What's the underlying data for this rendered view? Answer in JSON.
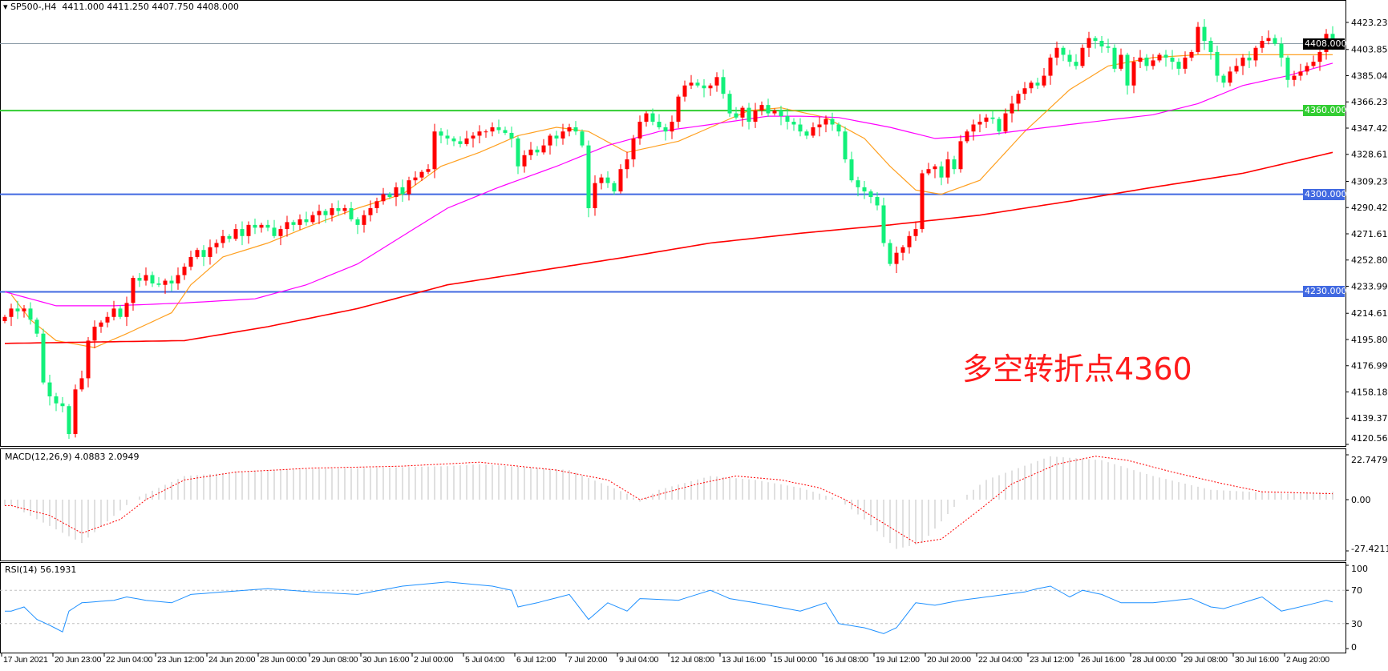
{
  "header": {
    "symbol": "SP500-,H4",
    "ohlc": "4411.000 4411.250 4407.750 4408.000",
    "macd_title": "MACD(12,26,9) 4.0883 2.0949",
    "rsi_title": "RSI(14) 56.1931"
  },
  "annotation": "多空转折点4360",
  "colors": {
    "up": "#ff0000",
    "down": "#12f07a",
    "ma_fast": "#ffa020",
    "ma_mid": "#ff00ff",
    "ma_slow": "#ff0000",
    "support": "#4169e1",
    "pivot": "#32cd32",
    "current": "#000000",
    "rsi": "#1e90ff",
    "macd_hist": "#c0c0c0",
    "macd_signal": "#ff0000"
  },
  "chart_data": [
    {
      "type": "candlestick",
      "title": "SP500-,H4",
      "price_axis_ticks": [
        "4423.230",
        "4403.850",
        "4385.040",
        "4366.230",
        "4347.420",
        "4328.610",
        "4309.230",
        "4290.420",
        "4271.610",
        "4252.800",
        "4233.990",
        "4214.610",
        "4195.800",
        "4176.990",
        "4158.180",
        "4139.370",
        "4120.560"
      ],
      "ylim": [
        4120.56,
        4423.23
      ],
      "time_axis_ticks": [
        "17 Jun 2021",
        "20 Jun 23:00",
        "22 Jun 04:00",
        "23 Jun 12:00",
        "24 Jun 20:00",
        "28 Jun 00:00",
        "29 Jun 08:00",
        "30 Jun 16:00",
        "2 Jul 00:00",
        "5 Jul 04:00",
        "6 Jul 12:00",
        "7 Jul 20:00",
        "9 Jul 04:00",
        "12 Jul 08:00",
        "13 Jul 16:00",
        "15 Jul 00:00",
        "16 Jul 08:00",
        "19 Jul 12:00",
        "20 Jul 20:00",
        "22 Jul 04:00",
        "23 Jul 12:00",
        "26 Jul 16:00",
        "28 Jul 00:00",
        "29 Jul 08:00",
        "30 Jul 16:00",
        "2 Aug 20:00"
      ],
      "bars_per_time_tick": 8,
      "closes": [
        4212,
        4218,
        4216,
        4218,
        4210,
        4200,
        4165,
        4155,
        4150,
        4148,
        4128,
        4160,
        4168,
        4195,
        4205,
        4208,
        4212,
        4218,
        4212,
        4222,
        4240,
        4238,
        4242,
        4236,
        4235,
        4238,
        4236,
        4242,
        4248,
        4255,
        4260,
        4255,
        4262,
        4265,
        4270,
        4268,
        4275,
        4270,
        4278,
        4276,
        4278,
        4276,
        4270,
        4275,
        4280,
        4278,
        4282,
        4280,
        4285,
        4288,
        4285,
        4290,
        4288,
        4290,
        4282,
        4278,
        4285,
        4290,
        4295,
        4300,
        4298,
        4305,
        4300,
        4310,
        4312,
        4316,
        4318,
        4345,
        4342,
        4340,
        4338,
        4336,
        4340,
        4342,
        4345,
        4345,
        4348,
        4346,
        4344,
        4340,
        4320,
        4328,
        4332,
        4330,
        4335,
        4342,
        4340,
        4345,
        4348,
        4345,
        4335,
        4290,
        4308,
        4312,
        4308,
        4302,
        4318,
        4325,
        4340,
        4352,
        4358,
        4352,
        4348,
        4345,
        4352,
        4370,
        4378,
        4380,
        4378,
        4376,
        4378,
        4384,
        4372,
        4358,
        4355,
        4362,
        4352,
        4360,
        4364,
        4358,
        4360,
        4356,
        4352,
        4350,
        4345,
        4342,
        4348,
        4350,
        4354,
        4350,
        4345,
        4325,
        4310,
        4305,
        4302,
        4298,
        4292,
        4265,
        4250,
        4258,
        4262,
        4270,
        4275,
        4315,
        4318,
        4320,
        4312,
        4325,
        4318,
        4338,
        4345,
        4350,
        4352,
        4355,
        4354,
        4345,
        4358,
        4365,
        4372,
        4376,
        4380,
        4378,
        4385,
        4398,
        4405,
        4400,
        4395,
        4392,
        4405,
        4412,
        4410,
        4406,
        4405,
        4390,
        4400,
        4378,
        4395,
        4398,
        4392,
        4396,
        4400,
        4398,
        4395,
        4390,
        4398,
        4402,
        4420,
        4410,
        4402,
        4385,
        4380,
        4388,
        4392,
        4398,
        4396,
        4405,
        4410,
        4412,
        4408,
        4398,
        4382,
        4385,
        4388,
        4392,
        4395,
        4402,
        4415,
        4408
      ],
      "moving_averages": {
        "fast": [
          [
            1,
            4228
          ],
          [
            4,
            4210
          ],
          [
            8,
            4195
          ],
          [
            14,
            4190
          ],
          [
            19,
            4200
          ],
          [
            26,
            4215
          ],
          [
            29,
            4235
          ],
          [
            34,
            4255
          ],
          [
            41,
            4265
          ],
          [
            48,
            4278
          ],
          [
            55,
            4290
          ],
          [
            62,
            4300
          ],
          [
            68,
            4320
          ],
          [
            74,
            4330
          ],
          [
            80,
            4342
          ],
          [
            86,
            4348
          ],
          [
            91,
            4345
          ],
          [
            97,
            4330
          ],
          [
            105,
            4338
          ],
          [
            110,
            4348
          ],
          [
            116,
            4360
          ],
          [
            121,
            4362
          ],
          [
            128,
            4355
          ],
          [
            134,
            4340
          ],
          [
            138,
            4320
          ],
          [
            142,
            4303
          ],
          [
            146,
            4300
          ],
          [
            152,
            4310
          ],
          [
            159,
            4345
          ],
          [
            166,
            4375
          ],
          [
            172,
            4392
          ],
          [
            179,
            4398
          ],
          [
            186,
            4400
          ],
          [
            193,
            4400
          ],
          [
            200,
            4400
          ],
          [
            207,
            4400
          ]
        ],
        "mid": [
          [
            0,
            4230
          ],
          [
            8,
            4220
          ],
          [
            17,
            4220
          ],
          [
            28,
            4222
          ],
          [
            39,
            4225
          ],
          [
            47,
            4235
          ],
          [
            55,
            4250
          ],
          [
            62,
            4270
          ],
          [
            69,
            4290
          ],
          [
            77,
            4305
          ],
          [
            86,
            4320
          ],
          [
            94,
            4335
          ],
          [
            102,
            4345
          ],
          [
            110,
            4350
          ],
          [
            119,
            4356
          ],
          [
            124,
            4356
          ],
          [
            130,
            4355
          ],
          [
            138,
            4348
          ],
          [
            145,
            4340
          ],
          [
            152,
            4342
          ],
          [
            166,
            4350
          ],
          [
            179,
            4357
          ],
          [
            186,
            4365
          ],
          [
            193,
            4378
          ],
          [
            200,
            4385
          ],
          [
            207,
            4394
          ]
        ],
        "slow": [
          [
            0,
            4193
          ],
          [
            28,
            4195
          ],
          [
            41,
            4205
          ],
          [
            55,
            4218
          ],
          [
            69,
            4235
          ],
          [
            83,
            4245
          ],
          [
            97,
            4255
          ],
          [
            110,
            4265
          ],
          [
            124,
            4272
          ],
          [
            138,
            4278
          ],
          [
            152,
            4285
          ],
          [
            166,
            4295
          ],
          [
            179,
            4305
          ],
          [
            193,
            4315
          ],
          [
            207,
            4330
          ]
        ]
      },
      "horizontal_levels": [
        {
          "value": "4408.000",
          "role": "current"
        },
        {
          "value": "4360.000",
          "role": "pivot"
        },
        {
          "value": "4300.000",
          "role": "support"
        },
        {
          "value": "4230.000",
          "role": "support"
        }
      ]
    },
    {
      "type": "bar+line",
      "title": "MACD(12,26,9) 4.0883 2.0949",
      "axis_ticks": [
        "22.7479",
        "0.00",
        "-27.4211"
      ],
      "ylim": [
        -27.4211,
        22.7479
      ],
      "histogram": [
        [
          1,
          -3
        ],
        [
          12,
          -22
        ],
        [
          20,
          0
        ],
        [
          28,
          12
        ],
        [
          41,
          15
        ],
        [
          69,
          17
        ],
        [
          74,
          18
        ],
        [
          88,
          15
        ],
        [
          97,
          3
        ],
        [
          99,
          -1
        ],
        [
          102,
          5
        ],
        [
          110,
          12
        ],
        [
          117,
          10
        ],
        [
          124,
          6
        ],
        [
          130,
          0
        ],
        [
          134,
          -10
        ],
        [
          139,
          -25
        ],
        [
          143,
          -22
        ],
        [
          149,
          0
        ],
        [
          153,
          10
        ],
        [
          163,
          22
        ],
        [
          171,
          20
        ],
        [
          179,
          12
        ],
        [
          188,
          5
        ],
        [
          200,
          3
        ],
        [
          207,
          4
        ]
      ],
      "signal": [
        [
          1,
          -3
        ],
        [
          7,
          -8
        ],
        [
          12,
          -17
        ],
        [
          18,
          -10
        ],
        [
          22,
          0
        ],
        [
          28,
          10
        ],
        [
          36,
          14
        ],
        [
          48,
          16
        ],
        [
          62,
          17
        ],
        [
          74,
          19
        ],
        [
          86,
          15
        ],
        [
          94,
          10
        ],
        [
          98,
          2
        ],
        [
          99,
          0
        ],
        [
          108,
          8
        ],
        [
          114,
          12
        ],
        [
          121,
          10
        ],
        [
          127,
          6
        ],
        [
          131,
          0
        ],
        [
          137,
          -12
        ],
        [
          142,
          -22
        ],
        [
          146,
          -20
        ],
        [
          152,
          -5
        ],
        [
          157,
          8
        ],
        [
          164,
          18
        ],
        [
          170,
          22
        ],
        [
          175,
          20
        ],
        [
          182,
          14
        ],
        [
          190,
          8
        ],
        [
          196,
          4
        ],
        [
          207,
          3
        ]
      ]
    },
    {
      "type": "line",
      "title": "RSI(14) 56.1931",
      "axis_ticks": [
        "100",
        "70",
        "30",
        "0"
      ],
      "ylim": [
        0,
        100
      ],
      "levels": [
        70,
        30
      ],
      "values": [
        [
          1,
          45
        ],
        [
          3,
          50
        ],
        [
          5,
          35
        ],
        [
          7,
          28
        ],
        [
          9,
          20
        ],
        [
          10,
          45
        ],
        [
          12,
          55
        ],
        [
          17,
          58
        ],
        [
          19,
          62
        ],
        [
          22,
          58
        ],
        [
          26,
          55
        ],
        [
          29,
          65
        ],
        [
          34,
          68
        ],
        [
          41,
          72
        ],
        [
          48,
          68
        ],
        [
          55,
          65
        ],
        [
          62,
          75
        ],
        [
          69,
          80
        ],
        [
          76,
          75
        ],
        [
          79,
          70
        ],
        [
          80,
          50
        ],
        [
          83,
          55
        ],
        [
          88,
          65
        ],
        [
          91,
          35
        ],
        [
          94,
          55
        ],
        [
          97,
          45
        ],
        [
          99,
          60
        ],
        [
          105,
          58
        ],
        [
          110,
          70
        ],
        [
          113,
          60
        ],
        [
          117,
          55
        ],
        [
          124,
          45
        ],
        [
          128,
          55
        ],
        [
          130,
          30
        ],
        [
          134,
          25
        ],
        [
          137,
          18
        ],
        [
          139,
          25
        ],
        [
          142,
          55
        ],
        [
          145,
          52
        ],
        [
          149,
          58
        ],
        [
          153,
          62
        ],
        [
          159,
          68
        ],
        [
          161,
          72
        ],
        [
          163,
          75
        ],
        [
          166,
          62
        ],
        [
          168,
          70
        ],
        [
          171,
          65
        ],
        [
          174,
          55
        ],
        [
          179,
          55
        ],
        [
          185,
          60
        ],
        [
          188,
          50
        ],
        [
          190,
          48
        ],
        [
          196,
          62
        ],
        [
          199,
          45
        ],
        [
          203,
          52
        ],
        [
          206,
          58
        ],
        [
          207,
          56
        ]
      ]
    }
  ]
}
